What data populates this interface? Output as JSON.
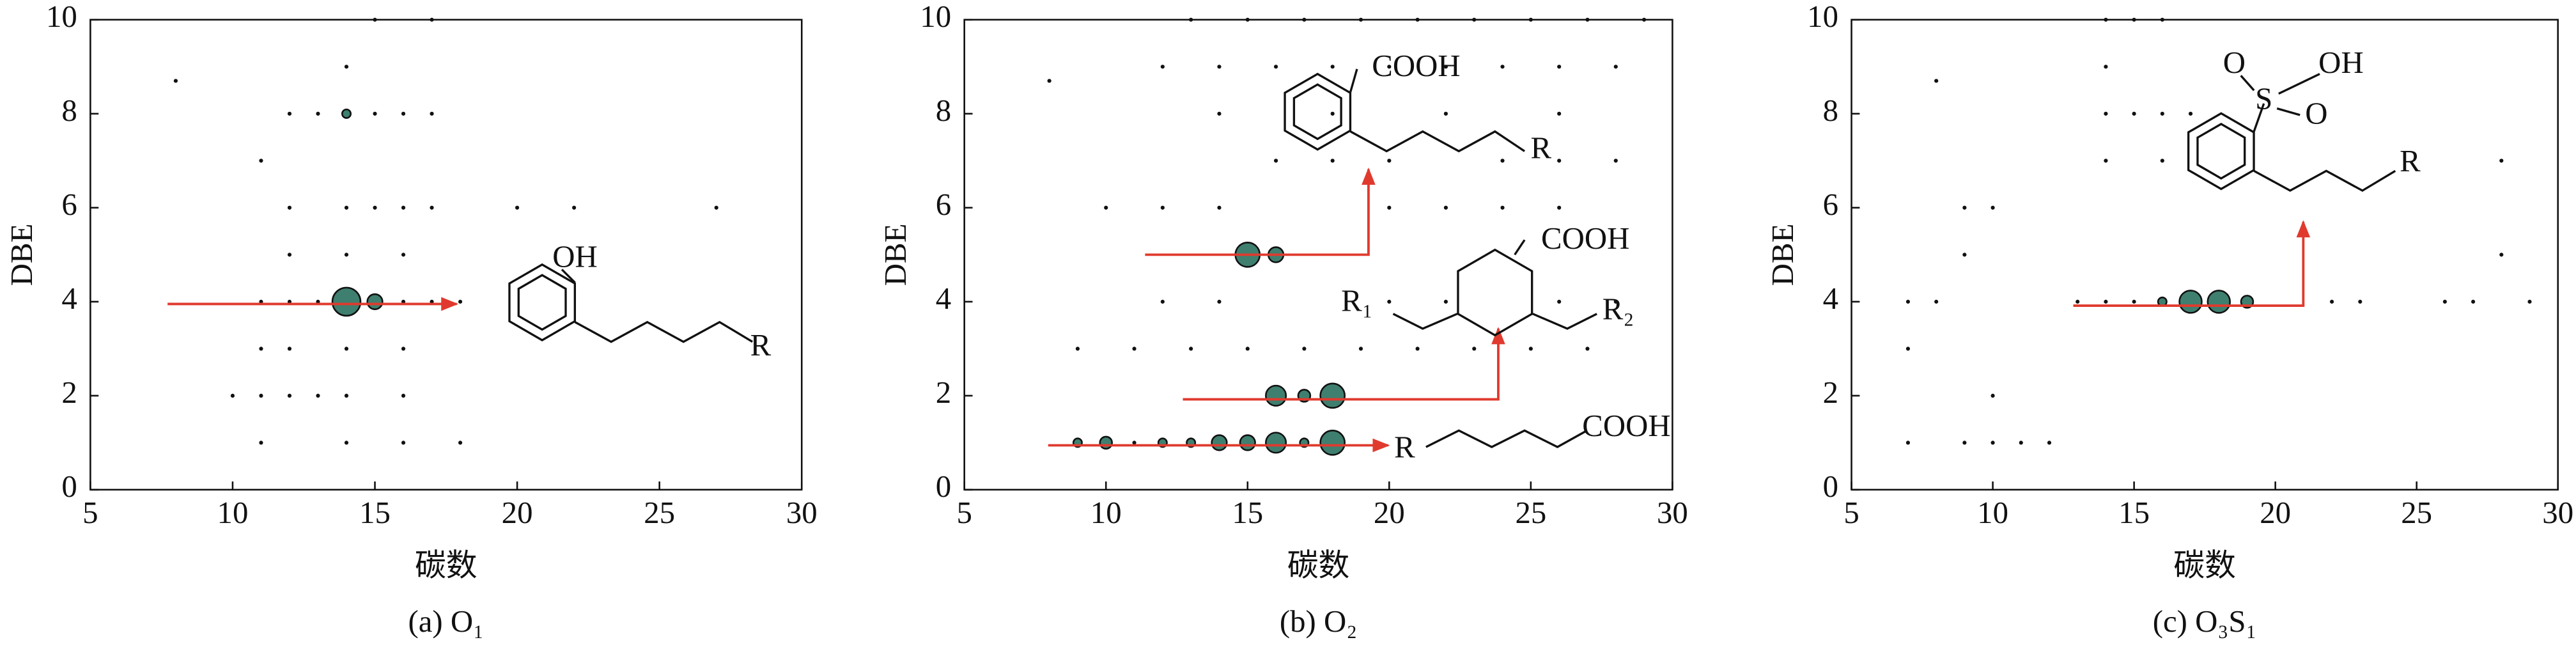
{
  "chart_data": [
    {
      "type": "scatter",
      "title": "(a) O₁",
      "xlabel": "碳数",
      "ylabel": "DBE",
      "color": "#3f7f6f",
      "arrow_color": "#e03a2e",
      "xlim": [
        5,
        30
      ],
      "ylim": [
        0,
        10
      ],
      "xticks": [
        5,
        10,
        15,
        20,
        25,
        30
      ],
      "yticks": [
        0,
        2,
        4,
        6,
        8,
        10
      ],
      "annotations": [
        "OH",
        "R"
      ],
      "x": [
        8,
        14,
        12,
        13,
        14,
        15,
        16,
        17,
        11,
        12,
        14,
        15,
        16,
        17,
        20,
        22,
        27,
        12,
        14,
        16,
        11,
        12,
        13,
        14,
        15,
        16,
        17,
        18,
        11,
        12,
        14,
        16,
        10,
        11,
        12,
        13,
        14,
        16,
        11,
        14,
        16,
        18,
        15,
        17
      ],
      "y": [
        8.7,
        9,
        8,
        8,
        8,
        8,
        8,
        8,
        7,
        6,
        6,
        6,
        6,
        6,
        6,
        6,
        6,
        5,
        5,
        5,
        4,
        4,
        4,
        4,
        4,
        4,
        4,
        4,
        3,
        3,
        3,
        3,
        2,
        2,
        2,
        2,
        2,
        2,
        1,
        1,
        1,
        1,
        10,
        10
      ],
      "sizes": [
        1,
        1,
        1,
        1,
        2,
        1,
        1,
        1,
        1,
        1,
        1,
        1,
        1,
        1,
        1,
        1,
        1,
        1,
        1,
        1,
        1,
        1,
        1,
        10,
        4,
        1,
        1,
        1,
        1,
        1,
        1,
        1,
        1,
        1,
        1,
        1,
        1,
        1,
        1,
        1,
        1,
        1,
        1,
        1
      ]
    },
    {
      "type": "scatter",
      "title": "(b) O₂",
      "xlabel": "碳数",
      "ylabel": "DBE",
      "color": "#3f7f6f",
      "arrow_color": "#e03a2e",
      "xlim": [
        5,
        30
      ],
      "ylim": [
        0,
        10
      ],
      "xticks": [
        5,
        10,
        15,
        20,
        25,
        30
      ],
      "yticks": [
        0,
        2,
        4,
        6,
        8,
        10
      ],
      "annotations": [
        "COOH",
        "R",
        "COOH",
        "R₁",
        "R₂",
        "R",
        "COOH"
      ],
      "x": [
        15,
        16,
        16,
        17,
        18,
        9,
        10,
        11,
        12,
        13,
        14,
        15,
        16,
        17,
        18,
        8,
        12,
        14,
        16,
        18,
        20,
        22,
        24,
        26,
        28,
        13,
        15,
        17,
        19,
        21,
        23,
        25,
        27,
        29,
        10,
        12,
        14,
        20,
        22,
        24,
        26,
        9,
        11,
        13,
        15,
        17,
        19,
        21,
        23,
        25,
        27,
        12,
        14,
        20,
        22,
        26,
        28,
        16,
        18,
        20,
        24,
        26,
        28,
        14,
        18,
        22,
        26
      ],
      "y": [
        5,
        5,
        2,
        2,
        2,
        1,
        1,
        1,
        1,
        1,
        1,
        1,
        1,
        1,
        1,
        8.7,
        9,
        9,
        9,
        9,
        9,
        9,
        9,
        9,
        9,
        10,
        10,
        10,
        10,
        10,
        10,
        10,
        10,
        10,
        6,
        6,
        6,
        6,
        6,
        6,
        6,
        3,
        3,
        3,
        3,
        3,
        3,
        3,
        3,
        3,
        3,
        4,
        4,
        4,
        4,
        4,
        4,
        7,
        7,
        7,
        7,
        7,
        7,
        8,
        8,
        8,
        8
      ],
      "sizes": [
        8,
        4,
        6,
        3,
        8,
        2,
        3,
        1,
        2,
        2,
        4,
        4,
        6,
        2,
        8,
        1,
        1,
        1,
        1,
        1,
        1,
        1,
        1,
        1,
        1,
        1,
        1,
        1,
        1,
        1,
        1,
        1,
        1,
        1,
        1,
        1,
        1,
        1,
        1,
        1,
        1,
        1,
        1,
        1,
        1,
        1,
        1,
        1,
        1,
        1,
        1,
        1,
        1,
        1,
        1,
        1,
        1,
        1,
        1,
        1,
        1,
        1,
        1,
        1,
        1,
        1,
        1
      ]
    },
    {
      "type": "scatter",
      "title": "(c) O₃S₁",
      "xlabel": "碳数",
      "ylabel": "DBE",
      "color": "#3f7f6f",
      "arrow_color": "#e03a2e",
      "xlim": [
        5,
        30
      ],
      "ylim": [
        0,
        10
      ],
      "xticks": [
        5,
        10,
        15,
        20,
        25,
        30
      ],
      "yticks": [
        0,
        2,
        4,
        6,
        8,
        10
      ],
      "annotations": [
        "O",
        "S",
        "O",
        "OH",
        "R"
      ],
      "x": [
        16,
        17,
        18,
        19,
        15,
        14,
        7,
        8,
        7,
        7,
        9,
        10,
        11,
        12,
        10,
        9,
        10,
        9,
        8,
        14,
        14,
        15,
        16,
        17,
        14,
        16,
        14,
        15,
        16,
        28,
        28,
        22,
        23,
        26,
        27,
        29,
        13
      ],
      "y": [
        4,
        4,
        4,
        4,
        4,
        4,
        4,
        4,
        3,
        1,
        1,
        1,
        1,
        1,
        2,
        6,
        6,
        5,
        8.7,
        9,
        8,
        8,
        8,
        8,
        7,
        7,
        10,
        10,
        10,
        7,
        5,
        4,
        4,
        4,
        4,
        4,
        4
      ],
      "sizes": [
        2,
        7,
        7,
        3,
        1,
        1,
        1,
        1,
        1,
        1,
        1,
        1,
        1,
        1,
        1,
        1,
        1,
        1,
        1,
        1,
        1,
        1,
        1,
        1,
        1,
        1,
        1,
        1,
        1,
        1,
        1,
        1,
        1,
        1,
        1,
        1,
        1
      ]
    }
  ]
}
